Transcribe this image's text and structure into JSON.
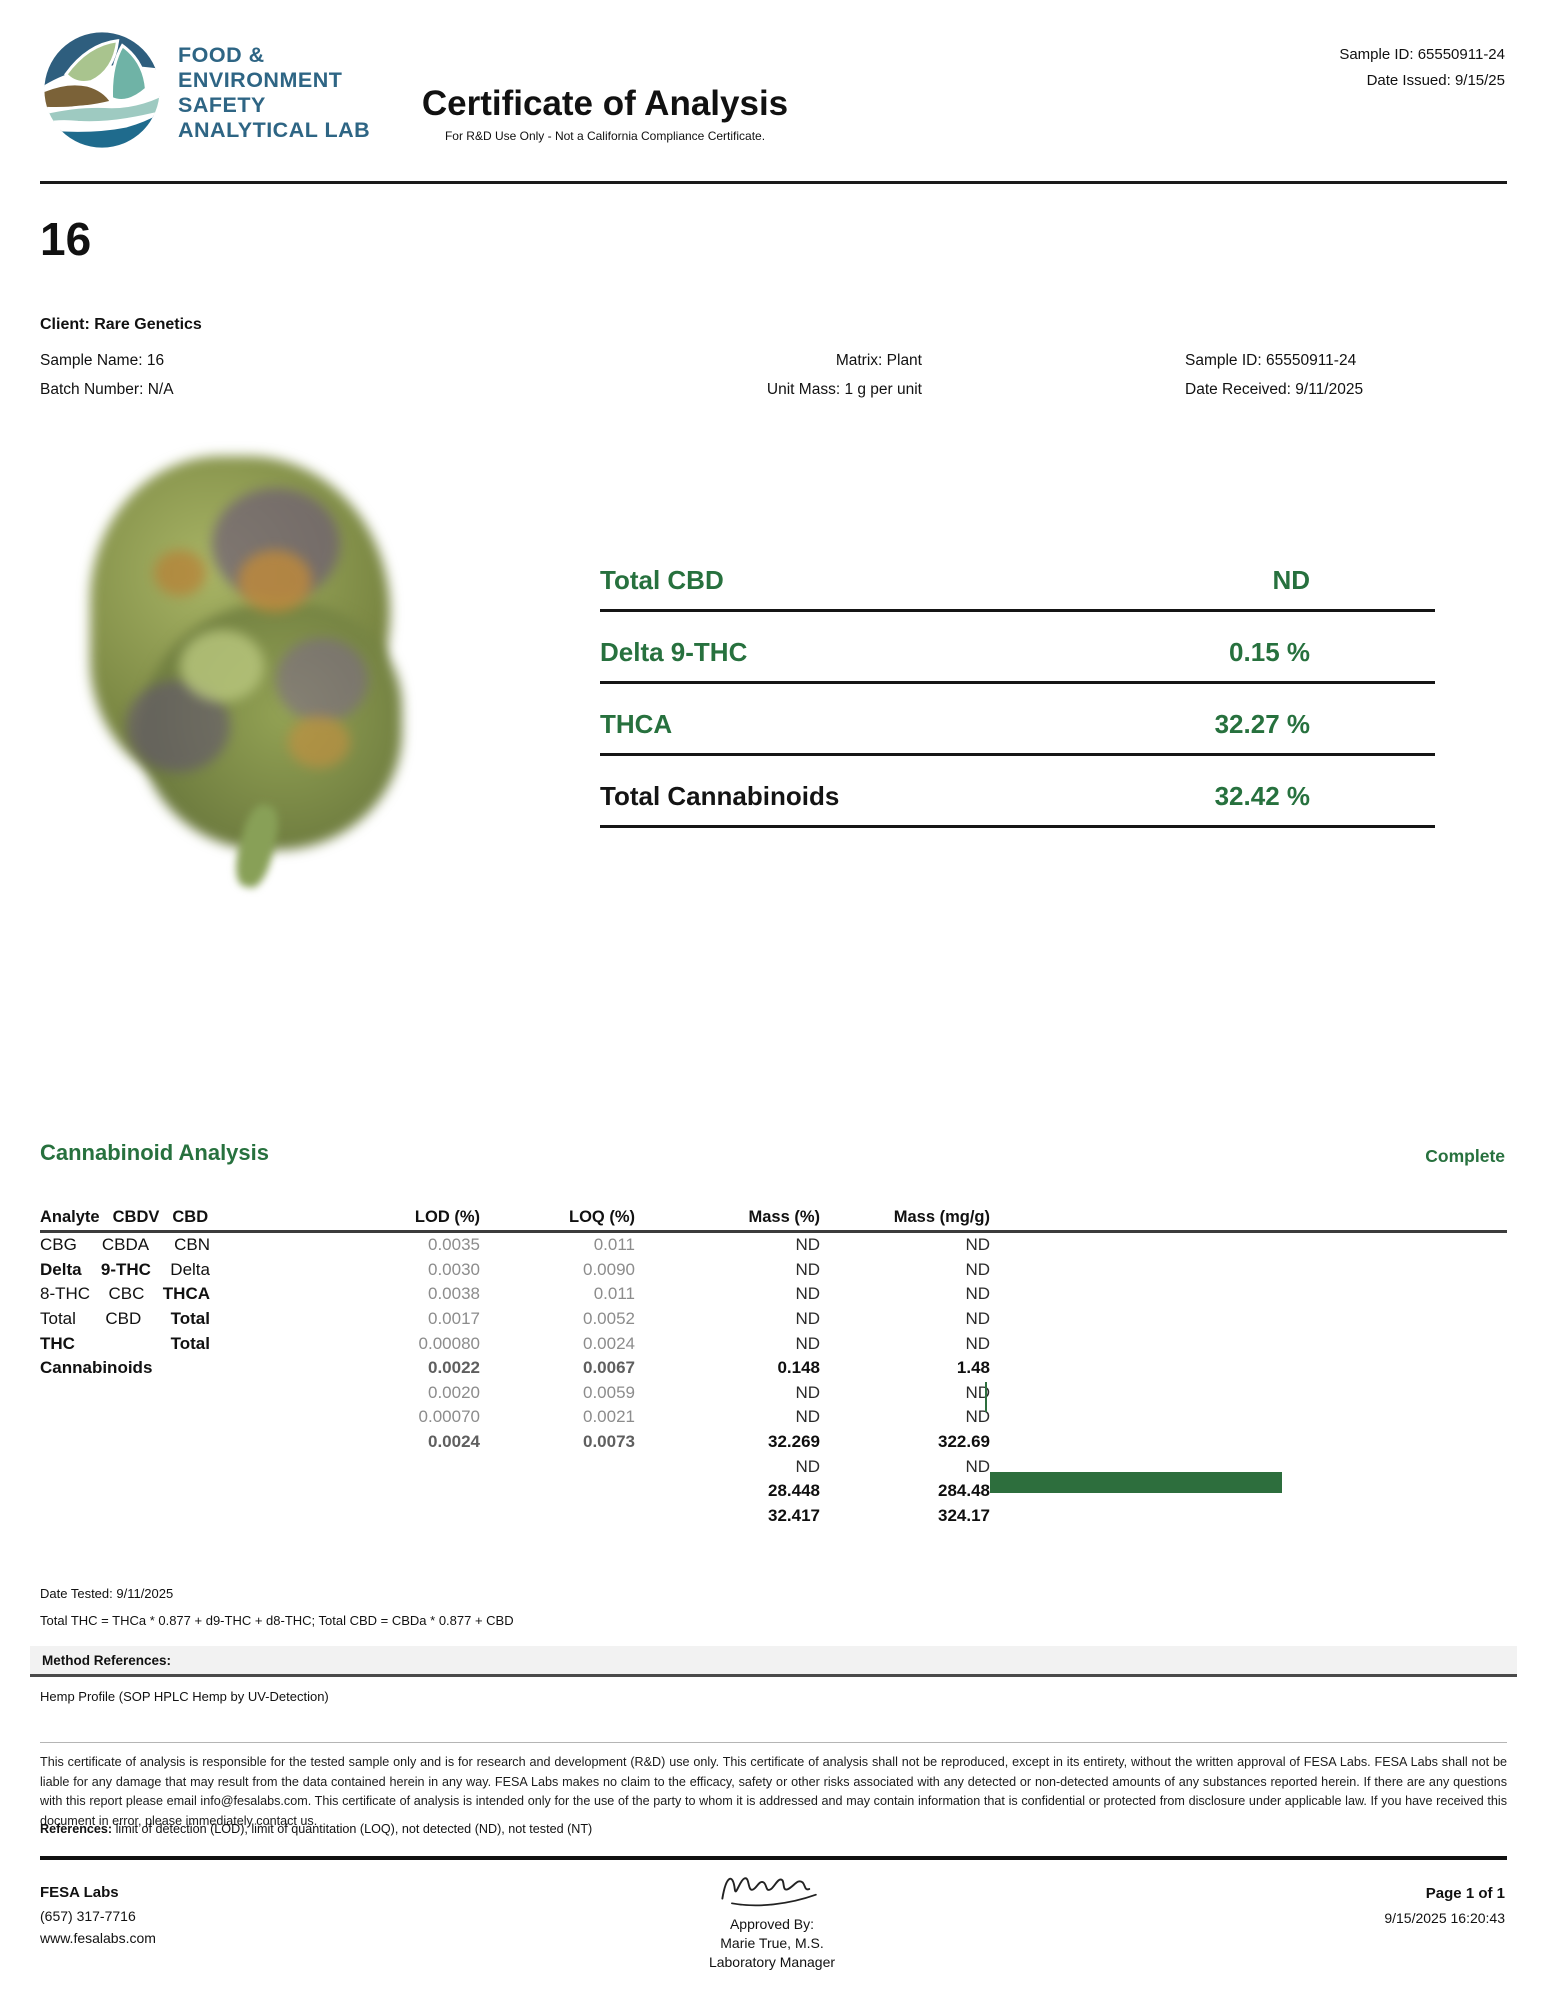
{
  "colors": {
    "green": "#27713e",
    "bar_green": "#2d6e3d",
    "logo_blue": "#2e6584"
  },
  "header": {
    "logo_lines": [
      "FOOD &",
      "ENVIRONMENT",
      "SAFETY",
      "ANALYTICAL LAB"
    ],
    "title": "Certificate of Analysis",
    "subtitle": "For R&D Use Only - Not a California Compliance Certificate.",
    "sample_id": "Sample ID: 65550911-24",
    "date_issued": "Date Issued: 9/15/25"
  },
  "sample": {
    "big_name": "16",
    "client_line": "Client: Rare Genetics",
    "columns": [
      [
        {
          "label": "Sample Name:",
          "value": "16"
        },
        {
          "label": "Batch Number:",
          "value": "N/A"
        }
      ],
      [
        {
          "label": "Matrix:",
          "value": "Plant"
        },
        {
          "label": "Unit Mass:",
          "value": "1 g per unit"
        }
      ],
      [
        {
          "label": "Sample ID:",
          "value": "65550911-24"
        },
        {
          "label": "Date Received:",
          "value": "9/11/2025"
        }
      ]
    ]
  },
  "summary": {
    "rows": [
      {
        "label": "Total CBD",
        "value": "ND",
        "dark": false
      },
      {
        "label": "Delta 9-THC",
        "value": "0.15 %",
        "dark": false
      },
      {
        "label": "THCA",
        "value": "32.27 %",
        "dark": false
      },
      {
        "label": "Total Cannabinoids",
        "value": "32.42 %",
        "dark": true
      }
    ]
  },
  "analysis": {
    "section_title": "Cannabinoid Analysis",
    "status": "Complete",
    "analyte_header_tokens": [
      {
        "text": "Analyte",
        "bold": true
      },
      {
        "text": "CBDV",
        "bold": false
      },
      {
        "text": "CBD",
        "bold": false
      }
    ],
    "col_headers": [
      "LOD (%)",
      "LOQ (%)",
      "Mass (%)",
      "Mass (mg/g)"
    ],
    "analyte_lines": [
      [
        {
          "text": "CBG"
        },
        {
          "text": "CBDA"
        },
        {
          "text": "CBN"
        }
      ],
      [
        {
          "text": "Delta",
          "bold": true
        },
        {
          "text": "9-THC",
          "bold": true
        },
        {
          "text": "Delta"
        }
      ],
      [
        {
          "text": "8-THC"
        },
        {
          "text": "CBC"
        },
        {
          "text": "THCA",
          "bold": true
        }
      ],
      [
        {
          "text": "Total"
        },
        {
          "text": "CBD"
        },
        {
          "text": "Total",
          "bold": true
        }
      ],
      [
        {
          "text": "THC",
          "bold": true
        },
        {
          "text": "Total",
          "bold": true
        }
      ],
      [
        {
          "text": "Cannabinoids",
          "bold": true
        }
      ]
    ],
    "rows": [
      {
        "analyte": "CBDV",
        "lod": "0.0035",
        "loq": "0.011",
        "mass_pct": "ND",
        "mass_mgg": "ND",
        "bold": false,
        "bar": 0
      },
      {
        "analyte": "CBD",
        "lod": "0.0030",
        "loq": "0.0090",
        "mass_pct": "ND",
        "mass_mgg": "ND",
        "bold": false,
        "bar": 0
      },
      {
        "analyte": "CBG",
        "lod": "0.0038",
        "loq": "0.011",
        "mass_pct": "ND",
        "mass_mgg": "ND",
        "bold": false,
        "bar": 0
      },
      {
        "analyte": "CBDA",
        "lod": "0.0017",
        "loq": "0.0052",
        "mass_pct": "ND",
        "mass_mgg": "ND",
        "bold": false,
        "bar": 0
      },
      {
        "analyte": "CBN",
        "lod": "0.00080",
        "loq": "0.0024",
        "mass_pct": "ND",
        "mass_mgg": "ND",
        "bold": false,
        "bar": 0
      },
      {
        "analyte": "Delta 9-THC",
        "lod": "0.0022",
        "loq": "0.0067",
        "mass_pct": "0.148",
        "mass_mgg": "1.48",
        "bold": true,
        "bar": 1.48
      },
      {
        "analyte": "Delta 8-THC",
        "lod": "0.0020",
        "loq": "0.0059",
        "mass_pct": "ND",
        "mass_mgg": "ND",
        "bold": false,
        "bar": 0
      },
      {
        "analyte": "CBC",
        "lod": "0.00070",
        "loq": "0.0021",
        "mass_pct": "ND",
        "mass_mgg": "ND",
        "bold": false,
        "bar": 0
      },
      {
        "analyte": "THCA",
        "lod": "0.0024",
        "loq": "0.0073",
        "mass_pct": "32.269",
        "mass_mgg": "322.69",
        "bold": true,
        "bar": 322.69
      },
      {
        "analyte": "Total CBD",
        "lod": "",
        "loq": "",
        "mass_pct": "ND",
        "mass_mgg": "ND",
        "bold": false,
        "bar": 0
      },
      {
        "analyte": "Total THC",
        "lod": "",
        "loq": "",
        "mass_pct": "28.448",
        "mass_mgg": "284.48",
        "bold": true,
        "bar": 0
      },
      {
        "analyte": "Total Cannabinoids",
        "lod": "",
        "loq": "",
        "mass_pct": "32.417",
        "mass_mgg": "324.17",
        "bold": true,
        "bar": 0
      }
    ],
    "date_tested": "Date Tested: 9/11/2025",
    "formula": "Total THC = THCa * 0.877 + d9-THC + d8-THC; Total CBD = CBDa * 0.877 + CBD",
    "method_references_label": "Method References:",
    "method": "Hemp Profile (SOP HPLC Hemp by UV-Detection)"
  },
  "legal": {
    "disclaimer": "This certificate of analysis is responsible for the tested sample only and is for research and development (R&D) use only. This certificate of analysis shall not be reproduced, except in its entirety, without the written approval of FESA Labs. FESA Labs shall not be liable for any damage that may result from the data contained herein in any way. FESA Labs makes no claim to the efficacy, safety or other risks associated with any detected or non-detected amounts of any substances reported herein. If there are any questions with this report please email info@fesalabs.com. This certificate of analysis is intended only for the use of the party to whom it is addressed and may contain information that is confidential or protected from disclosure under applicable law. If you have received this document in error, please immediately contact us.",
    "references_label": "References:",
    "references_text": " limit of detection (LOD), limit of quantitation (LOQ), not detected (ND), not tested (NT)"
  },
  "footer": {
    "company": "FESA Labs",
    "phone": "(657) 317-7716",
    "website": "www.fesalabs.com",
    "approved_by_label": "Approved By:",
    "approver": "Marie True, M.S.",
    "approver_title": "Laboratory Manager",
    "page": "Page 1 of 1",
    "datetime": "9/15/2025 16:20:43"
  }
}
